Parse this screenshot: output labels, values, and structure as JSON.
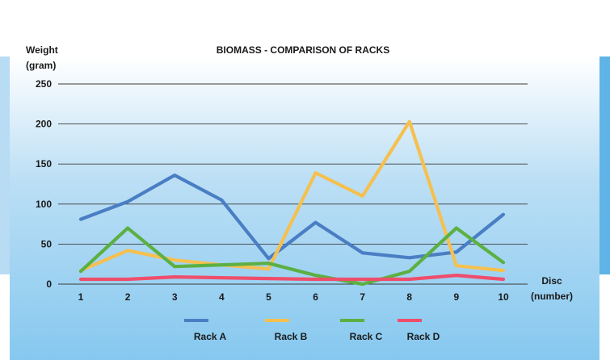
{
  "chart_data": {
    "type": "line",
    "title": "BIOMASS - COMPARISON OF RACKS",
    "ylabel": [
      "Weight",
      "(gram)"
    ],
    "xlabel": [
      "Disc",
      "(number)"
    ],
    "x": [
      1,
      2,
      3,
      4,
      5,
      6,
      7,
      8,
      9,
      10
    ],
    "ylim": [
      0,
      250
    ],
    "yticks": [
      0,
      50,
      100,
      150,
      200,
      250
    ],
    "grid": "horizontal",
    "legend_position": "bottom",
    "series": [
      {
        "name": "Rack A",
        "color": "#4a7ec4",
        "values": [
          81,
          103,
          136,
          105,
          32,
          77,
          39,
          33,
          40,
          87
        ]
      },
      {
        "name": "Rack B",
        "color": "#f5c04f",
        "values": [
          17,
          42,
          30,
          24,
          19,
          139,
          110,
          203,
          23,
          17
        ]
      },
      {
        "name": "Rack C",
        "color": "#5cb043",
        "values": [
          16,
          70,
          22,
          24,
          26,
          11,
          0,
          16,
          70,
          27
        ]
      },
      {
        "name": "Rack D",
        "color": "#ee4e6c",
        "values": [
          6,
          6,
          9,
          8,
          7,
          6,
          6,
          6,
          11,
          6
        ]
      }
    ]
  }
}
